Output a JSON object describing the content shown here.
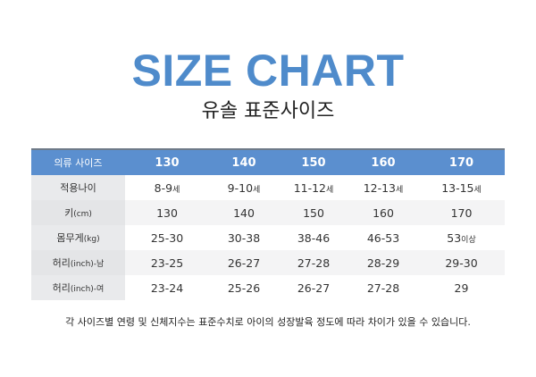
{
  "title": "SIZE CHART",
  "subtitle": "유솔 표준사이즈",
  "table": {
    "header": [
      "의류 사이즈",
      "130",
      "140",
      "150",
      "160",
      "170"
    ],
    "rows": [
      {
        "label": [
          "적용나이",
          ""
        ],
        "cells": [
          [
            "8-9",
            "세"
          ],
          [
            "9-10",
            "세"
          ],
          [
            "11-12",
            "세"
          ],
          [
            "12-13",
            "세"
          ],
          [
            "13-15",
            "세"
          ]
        ]
      },
      {
        "label": [
          "키",
          "(cm)"
        ],
        "cells": [
          [
            "130",
            ""
          ],
          [
            "140",
            ""
          ],
          [
            "150",
            ""
          ],
          [
            "160",
            ""
          ],
          [
            "170",
            ""
          ]
        ]
      },
      {
        "label": [
          "몸무게",
          "(kg)"
        ],
        "cells": [
          [
            "25-30",
            ""
          ],
          [
            "30-38",
            ""
          ],
          [
            "38-46",
            ""
          ],
          [
            "46-53",
            ""
          ],
          [
            "53",
            "이상"
          ]
        ]
      },
      {
        "label": [
          "허리",
          "(inch)-남"
        ],
        "cells": [
          [
            "23-25",
            ""
          ],
          [
            "26-27",
            ""
          ],
          [
            "27-28",
            ""
          ],
          [
            "28-29",
            ""
          ],
          [
            "29-30",
            ""
          ]
        ]
      },
      {
        "label": [
          "허리",
          "(inch)-여"
        ],
        "cells": [
          [
            "23-24",
            ""
          ],
          [
            "25-26",
            ""
          ],
          [
            "26-27",
            ""
          ],
          [
            "27-28",
            ""
          ],
          [
            "29",
            ""
          ]
        ]
      }
    ]
  },
  "note": "각 사이즈별 연령 및 신체지수는 표준수치로 아이의 성장발육 정도에 따라 차이가 있을 수 있습니다.",
  "colors": {
    "accent": "#4f8bcb",
    "header_bg": "#5b8fcf",
    "label_bg": "#e9eaec",
    "alt_row_bg": "#f4f4f5"
  }
}
